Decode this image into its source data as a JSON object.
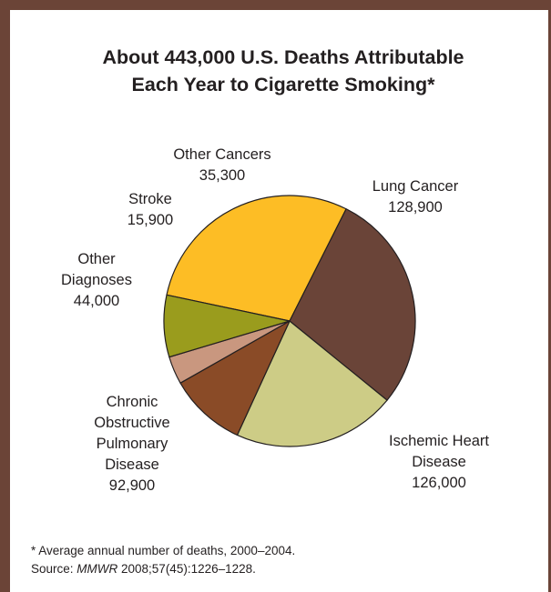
{
  "title": {
    "line1": "About 443,000 U.S. Deaths Attributable",
    "line2": "Each Year to Cigarette Smoking*"
  },
  "chart_data": {
    "type": "pie",
    "title": "About 443,000 U.S. Deaths Attributable Each Year to Cigarette Smoking*",
    "total": 443000,
    "slices": [
      {
        "label_lines": [
          "Lung Cancer"
        ],
        "value": 128900,
        "value_text": "128,900",
        "color": "#fdbd25"
      },
      {
        "label_lines": [
          "Ischemic Heart",
          "Disease"
        ],
        "value": 126000,
        "value_text": "126,000",
        "color": "#6a4438"
      },
      {
        "label_lines": [
          "Chronic",
          "Obstructive",
          "Pulmonary",
          "Disease"
        ],
        "value": 92900,
        "value_text": "92,900",
        "color": "#cdcc86"
      },
      {
        "label_lines": [
          "Other",
          "Diagnoses"
        ],
        "value": 44000,
        "value_text": "44,000",
        "color": "#8a4b27"
      },
      {
        "label_lines": [
          "Stroke"
        ],
        "value": 15900,
        "value_text": "15,900",
        "color": "#c9977f"
      },
      {
        "label_lines": [
          "Other Cancers"
        ],
        "value": 35300,
        "value_text": "35,300",
        "color": "#9a9c1d"
      }
    ]
  },
  "footnote": {
    "line1": "* Average annual number of deaths, 2000–2004.",
    "source_prefix": "Source: ",
    "source_journal": "MMWR",
    "source_rest": " 2008;57(45):1226–1228."
  }
}
